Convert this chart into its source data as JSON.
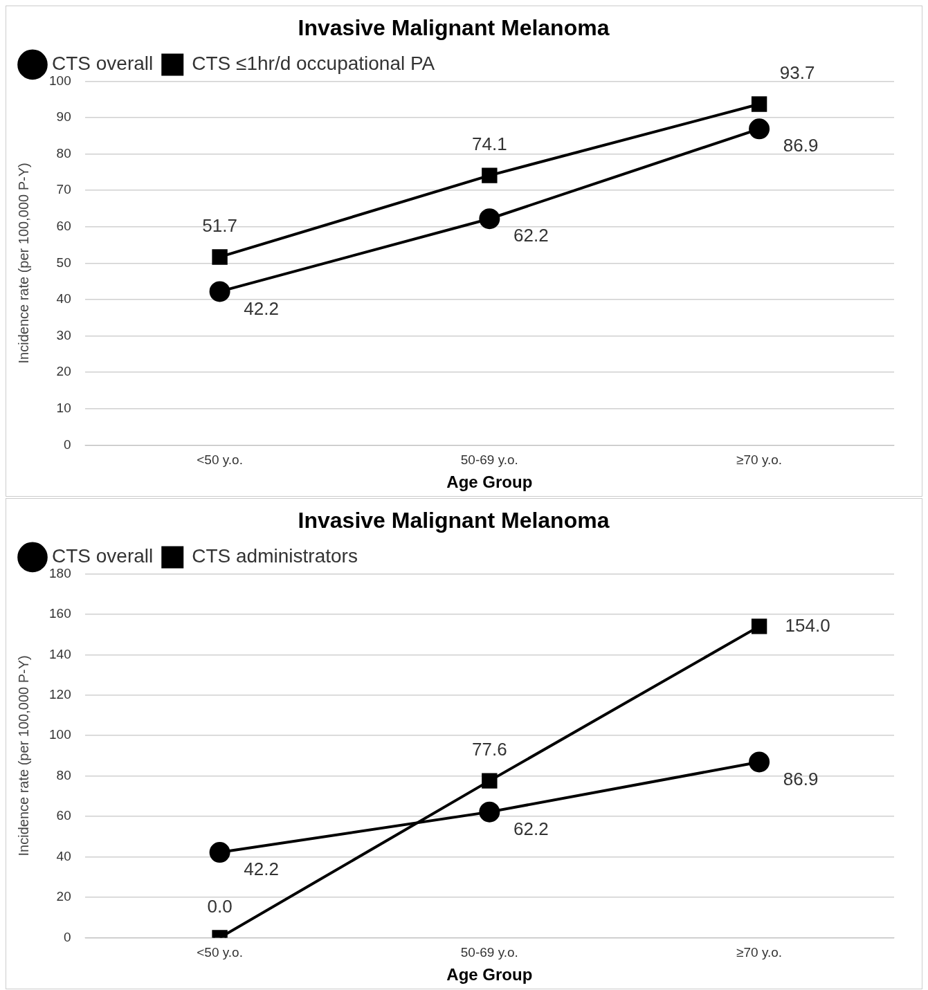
{
  "chart_data": [
    {
      "type": "line",
      "title": "Invasive Malignant Melanoma",
      "xlabel": "Age Group",
      "ylabel": "Incidence rate (per 100,000 P-Y)",
      "categories": [
        "<50 y.o.",
        "50-69 y.o.",
        "≥70 y.o."
      ],
      "series": [
        {
          "name": "CTS overall",
          "color": "#000000",
          "marker": "circle",
          "values": [
            42.2,
            62.2,
            86.9
          ],
          "value_labels": [
            "42.2",
            "62.2",
            "86.9"
          ]
        },
        {
          "name": "CTS ≤1hr/d occupational PA",
          "color": "#000000",
          "marker": "square",
          "values": [
            51.7,
            74.1,
            93.7
          ],
          "value_labels": [
            "51.7",
            "74.1",
            "93.7"
          ]
        }
      ],
      "ylim": [
        0,
        100
      ],
      "yticks": [
        0,
        10,
        20,
        30,
        40,
        50,
        60,
        70,
        80,
        90,
        100
      ],
      "grid": "y",
      "legend": "top left",
      "line_style": "solid"
    },
    {
      "type": "line",
      "title": "Invasive Malignant Melanoma",
      "xlabel": "Age Group",
      "ylabel": "Incidence rate (per 100,000 P-Y)",
      "categories": [
        "<50 y.o.",
        "50-69 y.o.",
        "≥70 y.o."
      ],
      "series": [
        {
          "name": "CTS overall",
          "color": "#000000",
          "marker": "circle",
          "values": [
            42.2,
            62.2,
            86.9
          ],
          "value_labels": [
            "42.2",
            "62.2",
            "86.9"
          ]
        },
        {
          "name": "CTS administrators",
          "color": "#000000",
          "marker": "square",
          "values": [
            0,
            77.6,
            154
          ],
          "value_labels": [
            "0.0",
            "77.6",
            "154.0"
          ]
        }
      ],
      "ylim": [
        0,
        180
      ],
      "yticks": [
        0,
        20,
        40,
        60,
        80,
        100,
        120,
        140,
        160,
        180
      ],
      "grid": "y",
      "legend": "top left",
      "line_style": "solid"
    }
  ]
}
